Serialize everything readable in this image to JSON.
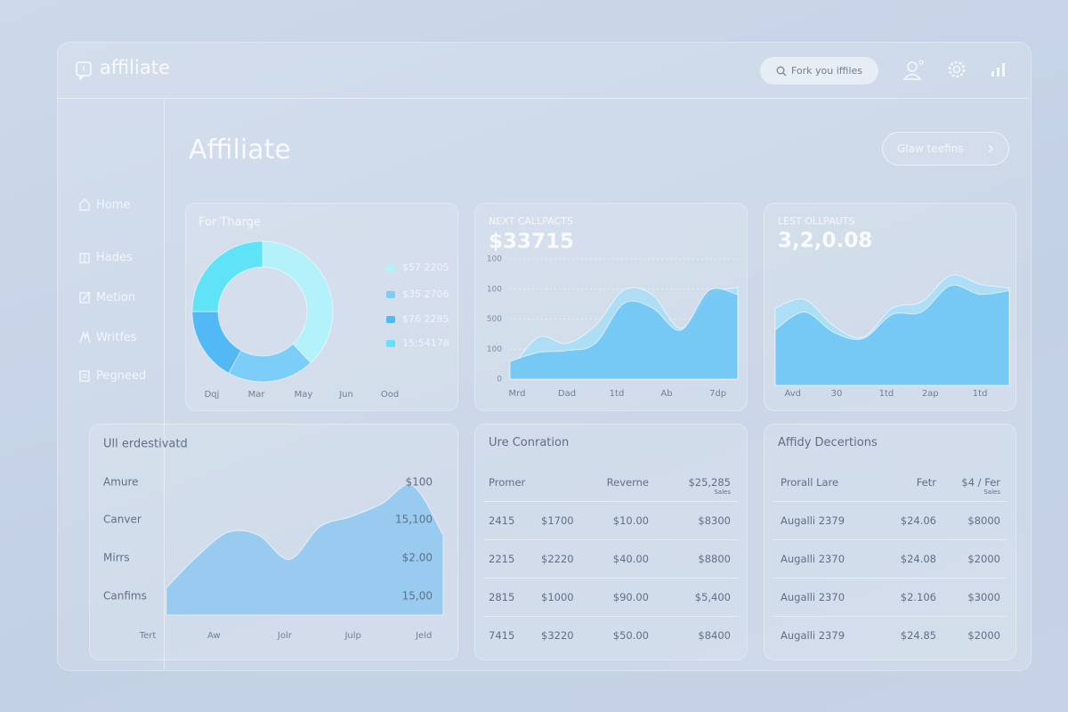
{
  "header": {
    "logo": "affiliate",
    "search": "Fork you iffiles"
  },
  "nav": [
    "Home",
    "Hades",
    "Metion",
    "Writfes",
    "Pegneed"
  ],
  "title": "Affiliate",
  "button": "Glaw teefins",
  "chart_data": [
    {
      "type": "donut",
      "title": "For Tharge",
      "categories": [
        "$57 2205",
        "$35 2706",
        "$76 2285",
        "15:54178"
      ],
      "values": [
        38,
        20,
        17,
        25
      ],
      "colors": [
        "#b3f1fb",
        "#7ccdf7",
        "#52b9f4",
        "#5fe3f6"
      ],
      "x_labels": [
        "Dqj",
        "Mar",
        "May",
        "Jun",
        "Ood"
      ]
    },
    {
      "type": "area",
      "title": "NEXT CALLPACTS",
      "value": "$33715",
      "x": [
        0,
        1,
        2,
        3,
        4,
        5,
        6,
        7,
        8
      ],
      "xlim": [
        0,
        8
      ],
      "xticks": [
        {
          "value": 0.25,
          "label": "Mrd"
        },
        {
          "value": 2,
          "label": "Dad"
        },
        {
          "value": 3.75,
          "label": "1td"
        },
        {
          "value": 5.5,
          "label": "Ab"
        },
        {
          "value": 7.3,
          "label": "7dp"
        }
      ],
      "ylim": [
        0,
        400
      ],
      "yticks": [
        0,
        100,
        {
          "value": 200,
          "label": "500"
        },
        {
          "value": 300,
          "label": "100"
        },
        {
          "value": 400,
          "label": "100"
        }
      ],
      "series": [
        {
          "color": "#a6def8",
          "values": [
            30,
            139,
            119,
            178,
            296,
            281,
            169,
            281,
            305
          ]
        },
        {
          "color": "#6cc4f4",
          "values": [
            59,
            89,
            95,
            119,
            252,
            237,
            163,
            296,
            281
          ]
        }
      ]
    },
    {
      "type": "area",
      "title": "LEST OLLPAUTS",
      "value": "3,2,0.08",
      "x": [
        0,
        1,
        2,
        3,
        4,
        5,
        6,
        7,
        8
      ],
      "xlim": [
        0,
        8
      ],
      "xticks": [
        {
          "value": 0.6,
          "label": "Avd"
        },
        {
          "value": 2.1,
          "label": "30"
        },
        {
          "value": 3.8,
          "label": "1td"
        },
        {
          "value": 5.3,
          "label": "2ap"
        },
        {
          "value": 7,
          "label": "1td"
        }
      ],
      "ylim": [
        0,
        100
      ],
      "series": [
        {
          "color": "#a6def8",
          "values": [
            61,
            68,
            47,
            38,
            61,
            66,
            87,
            80,
            77
          ]
        },
        {
          "color": "#6cc4f4",
          "values": [
            44,
            58,
            42,
            37,
            56,
            58,
            79,
            72,
            75
          ]
        }
      ]
    },
    {
      "type": "area",
      "title": "Ull erdestivatd",
      "row_labels": [
        "Amure",
        "Canver",
        "Mirrs",
        "Canfims"
      ],
      "right_labels": [
        "$100",
        "15,100",
        "$2.00",
        "15,00"
      ],
      "x": [
        0,
        1,
        2,
        3,
        4,
        5,
        6,
        7,
        8,
        9
      ],
      "xlim": [
        -0.6,
        9
      ],
      "xticks": [
        {
          "value": -0.6,
          "label": "Tert"
        },
        {
          "value": 1.55,
          "label": "Aw"
        },
        {
          "value": 3.85,
          "label": "Jolr"
        },
        {
          "value": 6.07,
          "label": "Julp"
        },
        {
          "value": 8.37,
          "label": "Jeld"
        }
      ],
      "ylim": [
        0,
        100
      ],
      "series": [
        {
          "color": "#8fc8f1",
          "values": [
            19,
            41,
            58,
            56,
            39,
            62,
            69,
            78,
            91,
            56
          ]
        }
      ]
    }
  ],
  "tables": [
    {
      "title": "Ure Conration",
      "headers": [
        "Promer",
        "Reverne",
        "$25,285"
      ],
      "header_note": "Sales",
      "rows": [
        [
          "2415",
          "$1700",
          "$10.00",
          "$8300"
        ],
        [
          "2215",
          "$2220",
          "$40.00",
          "$8800"
        ],
        [
          "2815",
          "$1000",
          "$90.00",
          "$5,400"
        ],
        [
          "7415",
          "$3220",
          "$50.00",
          "$8400"
        ]
      ]
    },
    {
      "title": "Affidy Decertions",
      "headers": [
        "Prorall Lare",
        "Fetr",
        "$4 / Fer"
      ],
      "header_note": "Sales",
      "rows": [
        [
          "Augalli 2379",
          "$24.06",
          "$8000"
        ],
        [
          "Augalli 2370",
          "$24.08",
          "$2000"
        ],
        [
          "Augalli 2370",
          "$2.106",
          "$3000"
        ],
        [
          "Augalli 2379",
          "$24.85",
          "$2000"
        ]
      ]
    }
  ]
}
